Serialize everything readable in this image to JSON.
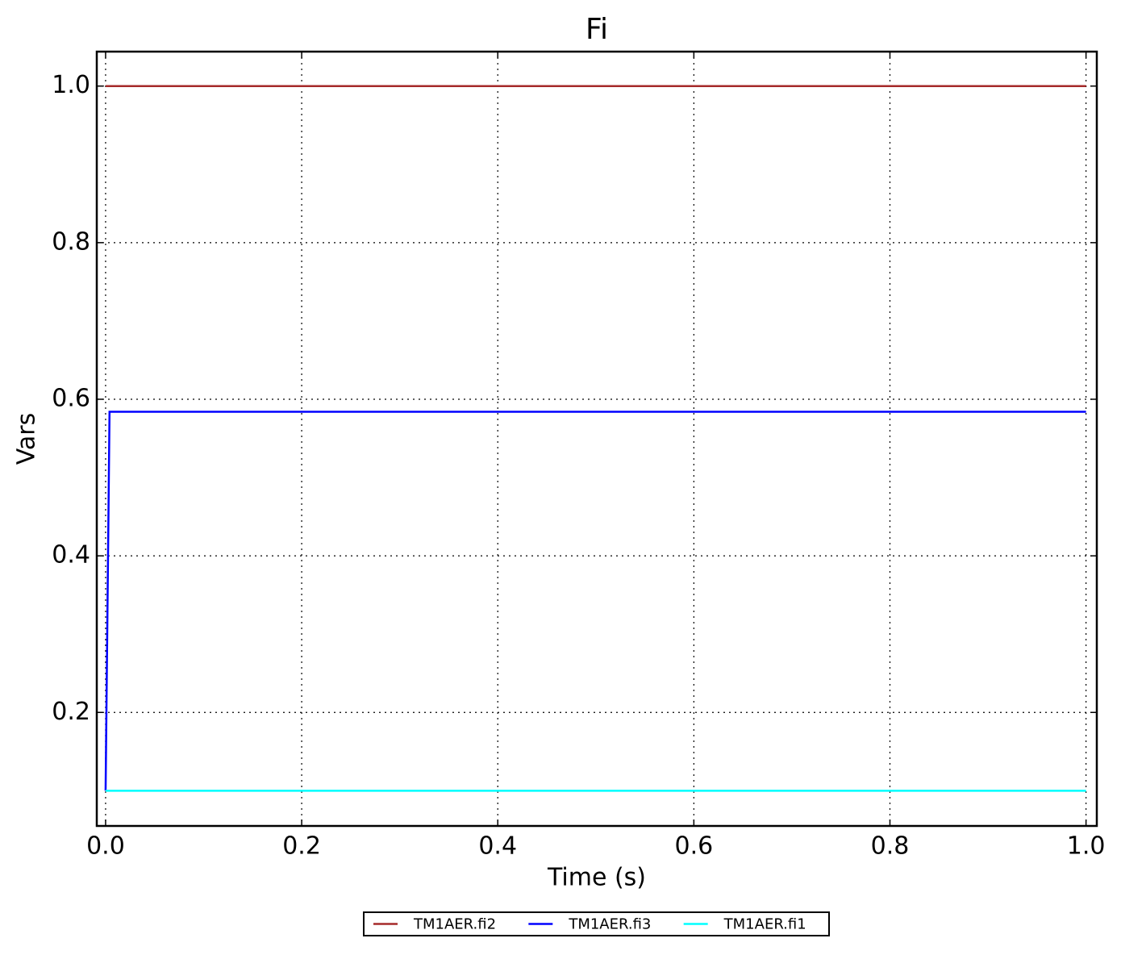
{
  "chart_data": {
    "type": "line",
    "title": "Fi",
    "x_label": "Time (s)",
    "y_label": "Vars",
    "x": [
      0,
      0.004,
      1
    ],
    "series": [
      {
        "name": "TM1AER.fi2",
        "color": "#a52a2a",
        "values": [
          1.0,
          1.0,
          1.0
        ]
      },
      {
        "name": "TM1AER.fi3",
        "color": "#0000ff",
        "values": [
          0.1,
          0.584,
          0.584
        ]
      },
      {
        "name": "TM1AER.fi1",
        "color": "#00ffff",
        "values": [
          0.1,
          0.1,
          0.1
        ]
      }
    ],
    "xlim": [
      -0.009,
      1.011
    ],
    "xticks": [
      {
        "value": 0,
        "label": "0.0"
      },
      0.2,
      0.4,
      0.6,
      0.8,
      {
        "value": 1,
        "label": "1.0"
      }
    ],
    "ylim": [
      0.055,
      1.044
    ],
    "yticks": [
      0.2,
      0.4,
      0.6,
      0.8,
      {
        "value": 1,
        "label": "1.0"
      }
    ],
    "grid": true,
    "legend": "lower center"
  }
}
